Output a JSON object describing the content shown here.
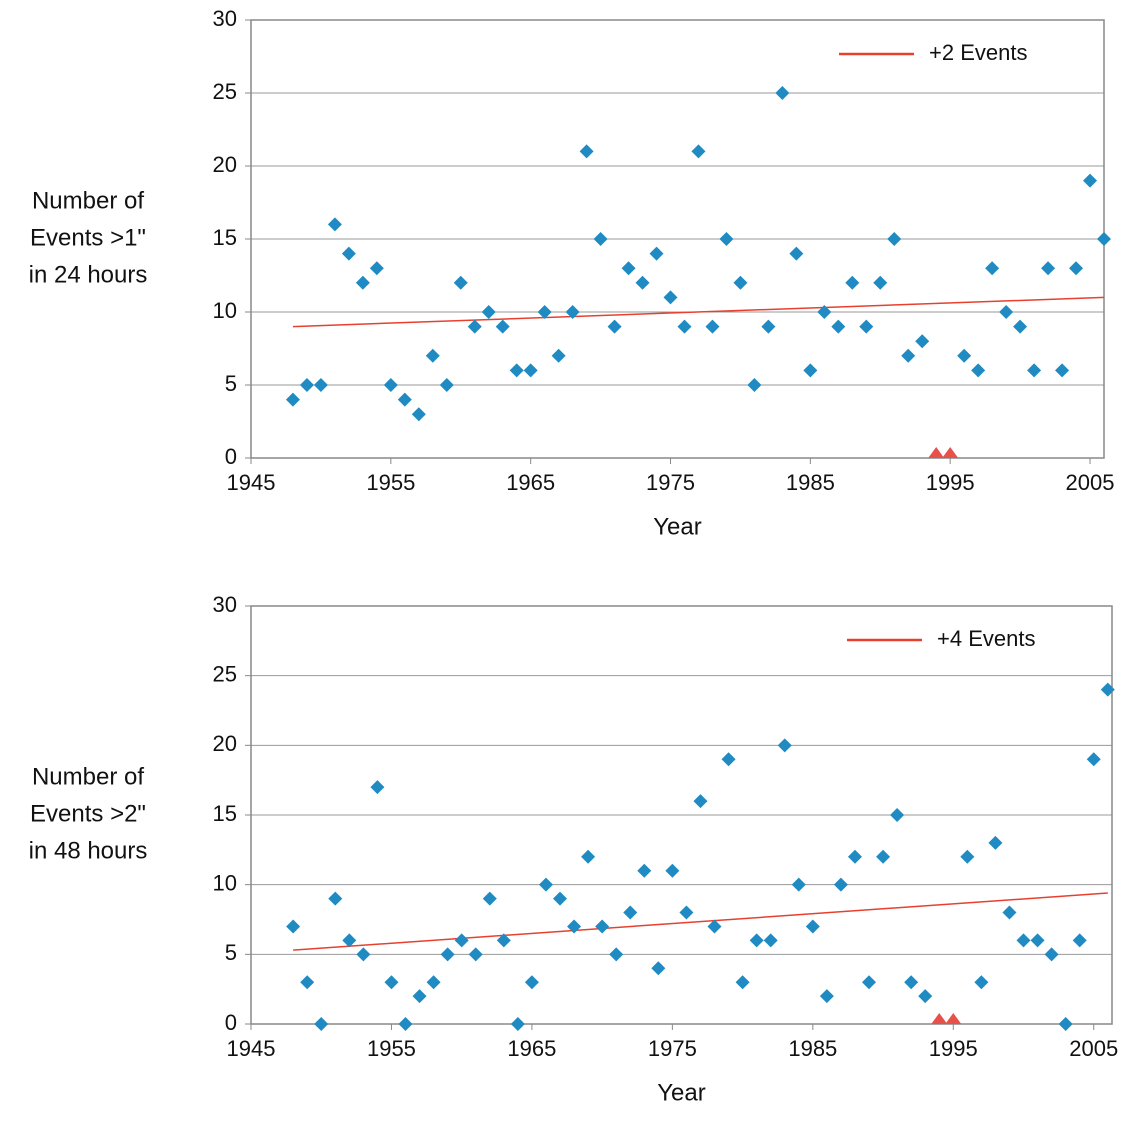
{
  "chart_data": [
    {
      "type": "scatter",
      "ylabel": [
        "Number of",
        "Events >1\"",
        "in 24 hours"
      ],
      "xlabel": "Year",
      "xlim": [
        1945,
        2006
      ],
      "xticks": [
        1945,
        1955,
        1965,
        1975,
        1985,
        1995,
        2005
      ],
      "ylim": [
        0,
        30
      ],
      "yticks": [
        0,
        5,
        10,
        15,
        20,
        25,
        30
      ],
      "grid": true,
      "series": [
        {
          "color": "#1f8bc2",
          "x": [
            1948,
            1949,
            1950,
            1951,
            1952,
            1953,
            1954,
            1955,
            1956,
            1957,
            1958,
            1959,
            1960,
            1961,
            1962,
            1963,
            1964,
            1965,
            1966,
            1967,
            1968,
            1969,
            1970,
            1971,
            1972,
            1973,
            1974,
            1975,
            1976,
            1977,
            1978,
            1979,
            1980,
            1981,
            1982,
            1983,
            1984,
            1985,
            1986,
            1987,
            1988,
            1989,
            1990,
            1991,
            1992,
            1993,
            1996,
            1997,
            1998,
            1999,
            2000,
            2001,
            2002,
            2003,
            2004,
            2005,
            2006
          ],
          "values": [
            4,
            5,
            5,
            16,
            14,
            12,
            13,
            5,
            4,
            3,
            7,
            5,
            12,
            9,
            10,
            9,
            6,
            6,
            10,
            7,
            10,
            21,
            15,
            9,
            13,
            12,
            14,
            11,
            9,
            21,
            9,
            15,
            12,
            5,
            9,
            25,
            14,
            6,
            10,
            9,
            12,
            9,
            12,
            15,
            7,
            8,
            7,
            6,
            13,
            10,
            9,
            6,
            13,
            6,
            13,
            19,
            15
          ]
        },
        {
          "color": "#e8504a",
          "x": [
            1994,
            1995
          ],
          "values": [
            0,
            0
          ]
        }
      ],
      "trend": {
        "name": "+2 Events",
        "color": "#e8402f",
        "x": [
          1948,
          2006
        ],
        "values": [
          9,
          11
        ]
      }
    },
    {
      "type": "scatter",
      "ylabel": [
        "Number of",
        "Events >2\"",
        "in 48 hours"
      ],
      "xlabel": "Year",
      "xlim": [
        1945,
        2006.3
      ],
      "xticks": [
        1945,
        1955,
        1965,
        1975,
        1985,
        1995,
        2005
      ],
      "ylim": [
        0,
        30
      ],
      "yticks": [
        0,
        5,
        10,
        15,
        20,
        25,
        30
      ],
      "grid": true,
      "series": [
        {
          "color": "#1f8bc2",
          "x": [
            1948,
            1949,
            1950,
            1951,
            1952,
            1953,
            1954,
            1955,
            1956,
            1957,
            1958,
            1959,
            1960,
            1961,
            1962,
            1963,
            1964,
            1965,
            1966,
            1967,
            1968,
            1969,
            1970,
            1971,
            1972,
            1973,
            1974,
            1975,
            1976,
            1977,
            1978,
            1979,
            1980,
            1981,
            1982,
            1983,
            1984,
            1985,
            1986,
            1987,
            1988,
            1989,
            1990,
            1991,
            1992,
            1993,
            1996,
            1997,
            1998,
            1999,
            2000,
            2001,
            2002,
            2003,
            2004,
            2005,
            2006
          ],
          "values": [
            7,
            3,
            0,
            9,
            6,
            5,
            17,
            3,
            0,
            2,
            3,
            5,
            6,
            5,
            9,
            6,
            0,
            3,
            10,
            9,
            7,
            12,
            7,
            5,
            8,
            11,
            4,
            11,
            8,
            16,
            7,
            19,
            3,
            6,
            6,
            20,
            10,
            7,
            2,
            10,
            12,
            3,
            12,
            15,
            3,
            2,
            12,
            3,
            13,
            8,
            6,
            6,
            5,
            0,
            6,
            19,
            24
          ]
        },
        {
          "color": "#e8504a",
          "x": [
            1994,
            1995
          ],
          "values": [
            0,
            0
          ]
        }
      ],
      "trend": {
        "name": "+4 Events",
        "color": "#e8402f",
        "x": [
          1948,
          2006
        ],
        "values": [
          5.3,
          9.4
        ]
      }
    }
  ]
}
